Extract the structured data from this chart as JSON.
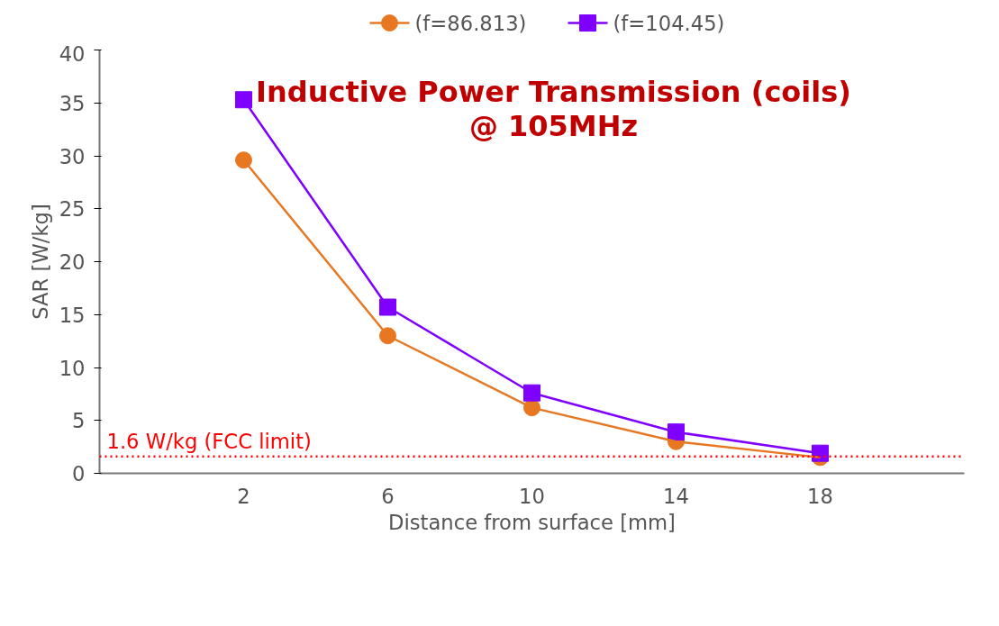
{
  "chart_data": {
    "type": "line",
    "title": "Inductive Power Transmission (coils)\n@ 105MHz",
    "xlabel": "Distance from surface [mm]",
    "ylabel": "SAR [W/kg]",
    "categories": [
      "2",
      "6",
      "10",
      "14",
      "18"
    ],
    "series": [
      {
        "name": "(f=86.813)",
        "color": "#e87722",
        "values": [
          29.6,
          13.0,
          6.2,
          3.0,
          1.5
        ],
        "marker": "circle"
      },
      {
        "name": "(f=104.45)",
        "color": "#7f00ff",
        "values": [
          35.3,
          15.7,
          7.6,
          3.9,
          1.9
        ],
        "marker": "square"
      }
    ],
    "ylim": [
      0,
      40
    ],
    "yticks": [
      0,
      5,
      10,
      15,
      20,
      25,
      30,
      35,
      40
    ],
    "ref_lines": [
      {
        "axis": "y",
        "value": 1.6,
        "label": "1.6 W/kg (FCC limit)",
        "color": "#ff0000",
        "line_style": "dotted"
      }
    ],
    "grid": false,
    "legend": "top",
    "line_style": "solid"
  }
}
